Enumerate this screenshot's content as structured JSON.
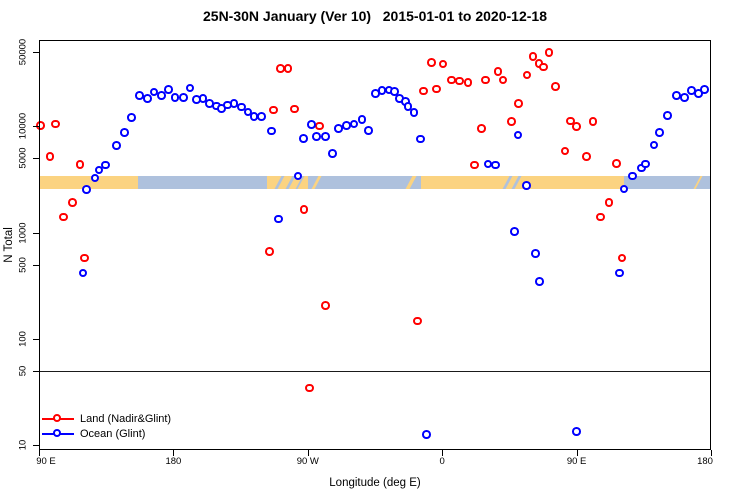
{
  "title": "25N-30N January (Ver 10)   2015-01-01 to 2020-12-18",
  "legend": {
    "items": [
      {
        "label": "Land (Nadir&Glint)",
        "color": "#ff0000"
      },
      {
        "label": "Ocean (Glint)",
        "color": "#0000ff"
      }
    ]
  },
  "chart_data": {
    "type": "scatter",
    "title": "25N-30N January (Ver 10)   2015-01-01 to 2020-12-18",
    "xlabel": "Longitude (deg E)",
    "ylabel": "N Total",
    "x_axis": {
      "range_deg_east_continuous": [
        90,
        540
      ],
      "ticks": [
        {
          "lon": 90,
          "label": "90 E"
        },
        {
          "lon": 180,
          "label": "180"
        },
        {
          "lon": 270,
          "label": "90 W"
        },
        {
          "lon": 360,
          "label": "0"
        },
        {
          "lon": 450,
          "label": "90 E"
        },
        {
          "lon": 540,
          "label": "180"
        }
      ]
    },
    "y_axis": {
      "scale": "log10",
      "range": [
        9,
        66000
      ],
      "ticks": [
        {
          "value": 50000,
          "label": "50000"
        },
        {
          "value": 10000,
          "label": "10000"
        },
        {
          "value": 5000,
          "label": "5000"
        },
        {
          "value": 1000,
          "label": "1000"
        },
        {
          "value": 500,
          "label": "500"
        },
        {
          "value": 100,
          "label": "100"
        },
        {
          "value": 50,
          "label": "50"
        },
        {
          "value": 10,
          "label": "10"
        }
      ]
    },
    "reference_line_value": 50,
    "surface_band": {
      "description": "land/ocean strip drawn across plot at N ~ 3000",
      "value_center": 3000,
      "land_color": "#fbd381",
      "ocean_color": "#aec1dd",
      "segments": [
        {
          "from_lon": 90,
          "to_lon": 156,
          "type": "land"
        },
        {
          "from_lon": 156,
          "to_lon": 243,
          "type": "ocean"
        },
        {
          "from_lon": 243,
          "to_lon": 270,
          "type": "land"
        },
        {
          "from_lon": 270,
          "to_lon": 346,
          "type": "ocean"
        },
        {
          "from_lon": 346,
          "to_lon": 482,
          "type": "land"
        },
        {
          "from_lon": 482,
          "to_lon": 540,
          "type": "ocean"
        }
      ],
      "streaks": [
        {
          "lon": 251,
          "width_deg": 2,
          "type": "ocean"
        },
        {
          "lon": 258.5,
          "width_deg": 2,
          "type": "ocean"
        },
        {
          "lon": 265,
          "width_deg": 1.5,
          "type": "ocean"
        },
        {
          "lon": 276,
          "width_deg": 2,
          "type": "land"
        },
        {
          "lon": 339,
          "width_deg": 3,
          "type": "land"
        },
        {
          "lon": 404,
          "width_deg": 2,
          "type": "ocean"
        },
        {
          "lon": 409.5,
          "width_deg": 2,
          "type": "ocean"
        },
        {
          "lon": 531.5,
          "width_deg": 1.5,
          "type": "land"
        }
      ]
    },
    "series": [
      {
        "name": "Land (Nadir&Glint)",
        "color": "#ff0000",
        "marker": "open-circle",
        "points": [
          [
            91.5,
            10000
          ],
          [
            101.6,
            10400
          ],
          [
            97.8,
            5100
          ],
          [
            117.9,
            4300
          ],
          [
            112.8,
            1880
          ],
          [
            106.7,
            1380
          ],
          [
            121,
            570
          ],
          [
            252.1,
            34600
          ],
          [
            257.2,
            34600
          ],
          [
            247.6,
            14100
          ],
          [
            261.6,
            14400
          ],
          [
            278.4,
            9900
          ],
          [
            353.2,
            39400
          ],
          [
            361,
            38000
          ],
          [
            348,
            21200
          ],
          [
            356.5,
            22200
          ],
          [
            366.6,
            26900
          ],
          [
            372.1,
            26300
          ],
          [
            377.7,
            25600
          ],
          [
            386.6,
            9400
          ],
          [
            382.1,
            4250
          ],
          [
            389.3,
            26900
          ],
          [
            397.8,
            32200
          ],
          [
            401.2,
            26900
          ],
          [
            417.3,
            30100
          ],
          [
            421.3,
            44600
          ],
          [
            432,
            48900
          ],
          [
            425.3,
            38500
          ],
          [
            428.4,
            35700
          ],
          [
            436.2,
            23400
          ],
          [
            406.7,
            10900
          ],
          [
            411.6,
            16100
          ],
          [
            446.5,
            11100
          ],
          [
            450.3,
            9800
          ],
          [
            461.5,
            11000
          ],
          [
            442.5,
            5800
          ],
          [
            457,
            5130
          ],
          [
            477.1,
            4400
          ],
          [
            472.2,
            1880
          ],
          [
            466.5,
            1380
          ],
          [
            480.8,
            570
          ],
          [
            267.9,
            1630
          ],
          [
            244.9,
            650
          ],
          [
            282.4,
            203
          ],
          [
            343.8,
            145
          ],
          [
            271.7,
            34
          ]
        ]
      },
      {
        "name": "Ocean (Glint)",
        "color": "#0000ff",
        "marker": "open-circle",
        "points": [
          [
            119.9,
            410
          ],
          [
            122.3,
            2500
          ],
          [
            127.8,
            3230
          ],
          [
            130.6,
            3830
          ],
          [
            135.1,
            4280
          ],
          [
            142.2,
            6500
          ],
          [
            147.8,
            8600
          ],
          [
            152.5,
            12000
          ],
          [
            157.8,
            19300
          ],
          [
            163,
            18000
          ],
          [
            167.5,
            20700
          ],
          [
            172.4,
            19300
          ],
          [
            177.1,
            21900
          ],
          [
            181.5,
            18300
          ],
          [
            187.1,
            18300
          ],
          [
            191.6,
            22700
          ],
          [
            196,
            17600
          ],
          [
            200.3,
            18000
          ],
          [
            204.7,
            16200
          ],
          [
            209.2,
            15300
          ],
          [
            212.8,
            14500
          ],
          [
            216.6,
            15700
          ],
          [
            221.1,
            16200
          ],
          [
            226,
            15000
          ],
          [
            230.4,
            13400
          ],
          [
            234.4,
            12200
          ],
          [
            239.3,
            12200
          ],
          [
            246,
            8900
          ],
          [
            250.9,
            1320
          ],
          [
            263.9,
            3350
          ],
          [
            267.7,
            7600
          ],
          [
            272.8,
            10300
          ],
          [
            276.2,
            7900
          ],
          [
            282.2,
            7900
          ],
          [
            286.9,
            5440
          ],
          [
            291.1,
            9400
          ],
          [
            296.3,
            10000
          ],
          [
            301.4,
            10400
          ],
          [
            306.8,
            11400
          ],
          [
            311.2,
            9050
          ],
          [
            315.9,
            20100
          ],
          [
            320.2,
            21400
          ],
          [
            324.8,
            21700
          ],
          [
            328.6,
            21000
          ],
          [
            332,
            18100
          ],
          [
            336,
            16900
          ],
          [
            337.6,
            15200
          ],
          [
            341.4,
            13300
          ],
          [
            346,
            7520
          ],
          [
            349.8,
            12.4
          ],
          [
            391.1,
            4350
          ],
          [
            396.2,
            4250
          ],
          [
            409,
            1010
          ],
          [
            411.2,
            8200
          ],
          [
            416.8,
            2730
          ],
          [
            422.8,
            630
          ],
          [
            425.7,
            340
          ],
          [
            450.3,
            13.2
          ],
          [
            479.3,
            410
          ],
          [
            482.2,
            2540
          ],
          [
            487.8,
            3350
          ],
          [
            493.8,
            4000
          ],
          [
            496.7,
            4350
          ],
          [
            502.3,
            6600
          ],
          [
            506,
            8630
          ],
          [
            511.2,
            12400
          ],
          [
            517.2,
            19300
          ],
          [
            522.7,
            18300
          ],
          [
            527.2,
            21400
          ],
          [
            532.1,
            20100
          ],
          [
            536.1,
            21900
          ]
        ]
      }
    ]
  }
}
